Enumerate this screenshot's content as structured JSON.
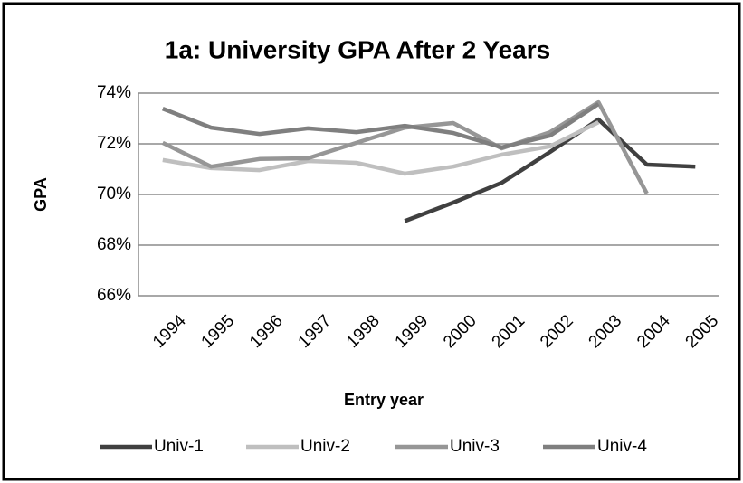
{
  "chart_data": {
    "type": "line",
    "title": "1a: University GPA After 2 Years",
    "x_label": "Entry year",
    "y_label": "GPA",
    "categories": [
      "1994",
      "1995",
      "1996",
      "1997",
      "1998",
      "1999",
      "2000",
      "2001",
      "2002",
      "2003",
      "2004",
      "2005"
    ],
    "series": [
      {
        "name": "Univ-1",
        "color": "#404040",
        "values": [
          null,
          null,
          null,
          null,
          null,
          68.95,
          69.68,
          70.46,
          71.68,
          72.96,
          71.18,
          71.1
        ]
      },
      {
        "name": "Univ-2",
        "color": "#bfbfbf",
        "values": [
          71.36,
          71.04,
          70.96,
          71.32,
          71.25,
          70.82,
          71.1,
          71.57,
          71.9,
          72.85,
          null,
          null
        ]
      },
      {
        "name": "Univ-3",
        "color": "#969696",
        "values": [
          72.04,
          71.1,
          71.4,
          71.43,
          72.04,
          72.64,
          72.82,
          71.82,
          72.46,
          73.64,
          70.04,
          null
        ]
      },
      {
        "name": "Univ-4",
        "color": "#7f7f7f",
        "values": [
          73.39,
          72.64,
          72.39,
          72.61,
          72.46,
          72.71,
          72.43,
          71.86,
          72.32,
          73.57,
          null,
          null
        ]
      }
    ],
    "ylim": [
      66,
      74
    ],
    "yticks": [
      {
        "value": 66,
        "label": "66%"
      },
      {
        "value": 68,
        "label": "68%"
      },
      {
        "value": 70,
        "label": "70%"
      },
      {
        "value": 72,
        "label": "72%"
      },
      {
        "value": 74,
        "label": "74%"
      }
    ],
    "grid": true,
    "legend": "bottom"
  }
}
